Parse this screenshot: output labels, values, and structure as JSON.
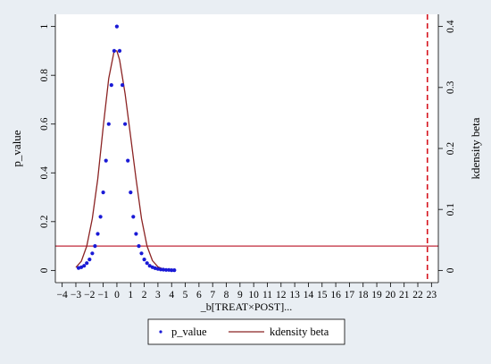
{
  "colors": {
    "background": "#e9eef3",
    "plot_area": "#ffffff",
    "p_value": "#1a1ad6",
    "kdensity": "#8b2323",
    "reference_line": "#c0283a",
    "treatment_line": "#d6141e"
  },
  "chart_data": {
    "type": "scatter",
    "xlabel": "_b[TREAT×POST]...",
    "ylabel_left": "p_value",
    "ylabel_right": "kdensity beta",
    "xlim": [
      -4.5,
      23.5
    ],
    "ylim_left": [
      -0.05,
      1.05
    ],
    "ylim_right": [
      -0.02,
      0.42
    ],
    "x_ticks": [
      -4,
      -3,
      -2,
      -1,
      0,
      1,
      2,
      3,
      4,
      5,
      6,
      7,
      8,
      9,
      10,
      11,
      12,
      13,
      14,
      15,
      16,
      17,
      18,
      19,
      20,
      21,
      22,
      23
    ],
    "x_tick_labels": [
      "−4",
      "−3",
      "−2",
      "−1",
      "0",
      "1",
      "2",
      "3",
      "4",
      "5",
      "6",
      "7",
      "8",
      "9",
      "10",
      "11",
      "12",
      "13",
      "14",
      "15",
      "16",
      "17",
      "18",
      "19",
      "20",
      "21",
      "22",
      "23"
    ],
    "y_ticks_left": [
      0,
      0.2,
      0.4,
      0.6,
      0.8,
      1
    ],
    "y_tick_labels_left": [
      "0",
      "0.2",
      "0.4",
      "0.6",
      "0.8",
      "1"
    ],
    "y_ticks_right": [
      0,
      0.1,
      0.2,
      0.3,
      0.4
    ],
    "y_tick_labels_right": [
      "0",
      "0.1",
      "0.2",
      "0.3",
      "0.4"
    ],
    "grid": false,
    "legend_position": "bottom",
    "series": [
      {
        "name": "p_value",
        "type": "scatter",
        "axis": "left",
        "x": [
          -2.8,
          -2.6,
          -2.4,
          -2.2,
          -2.0,
          -1.8,
          -1.6,
          -1.4,
          -1.2,
          -1.0,
          -0.8,
          -0.6,
          -0.4,
          -0.2,
          0.0,
          0.2,
          0.4,
          0.6,
          0.8,
          1.0,
          1.2,
          1.4,
          1.6,
          1.8,
          2.0,
          2.2,
          2.4,
          2.6,
          2.8,
          3.0,
          3.2,
          3.4,
          3.6,
          3.8,
          4.0,
          4.2
        ],
        "y": [
          0.01,
          0.013,
          0.019,
          0.03,
          0.045,
          0.07,
          0.1,
          0.15,
          0.22,
          0.32,
          0.45,
          0.6,
          0.76,
          0.9,
          1.0,
          0.9,
          0.76,
          0.6,
          0.45,
          0.32,
          0.22,
          0.15,
          0.1,
          0.07,
          0.045,
          0.03,
          0.019,
          0.013,
          0.009,
          0.006,
          0.004,
          0.003,
          0.002,
          0.002,
          0.001,
          0.001
        ]
      },
      {
        "name": "kdensity beta",
        "type": "line",
        "axis": "right",
        "x": [
          -3.0,
          -2.6,
          -2.2,
          -1.8,
          -1.4,
          -1.0,
          -0.6,
          -0.2,
          0.0,
          0.2,
          0.6,
          1.0,
          1.4,
          1.8,
          2.2,
          2.6,
          3.0,
          3.4
        ],
        "y": [
          0.005,
          0.015,
          0.04,
          0.085,
          0.15,
          0.235,
          0.315,
          0.36,
          0.36,
          0.345,
          0.29,
          0.22,
          0.15,
          0.085,
          0.04,
          0.016,
          0.006,
          0.002
        ]
      }
    ],
    "reference_lines": [
      {
        "orientation": "horizontal",
        "axis": "left",
        "value": 0.1,
        "style": "solid"
      },
      {
        "orientation": "vertical",
        "value": 22.7,
        "style": "dashed"
      }
    ]
  },
  "legend": {
    "items": [
      {
        "label": "p_value"
      },
      {
        "label": "kdensity beta"
      }
    ]
  }
}
